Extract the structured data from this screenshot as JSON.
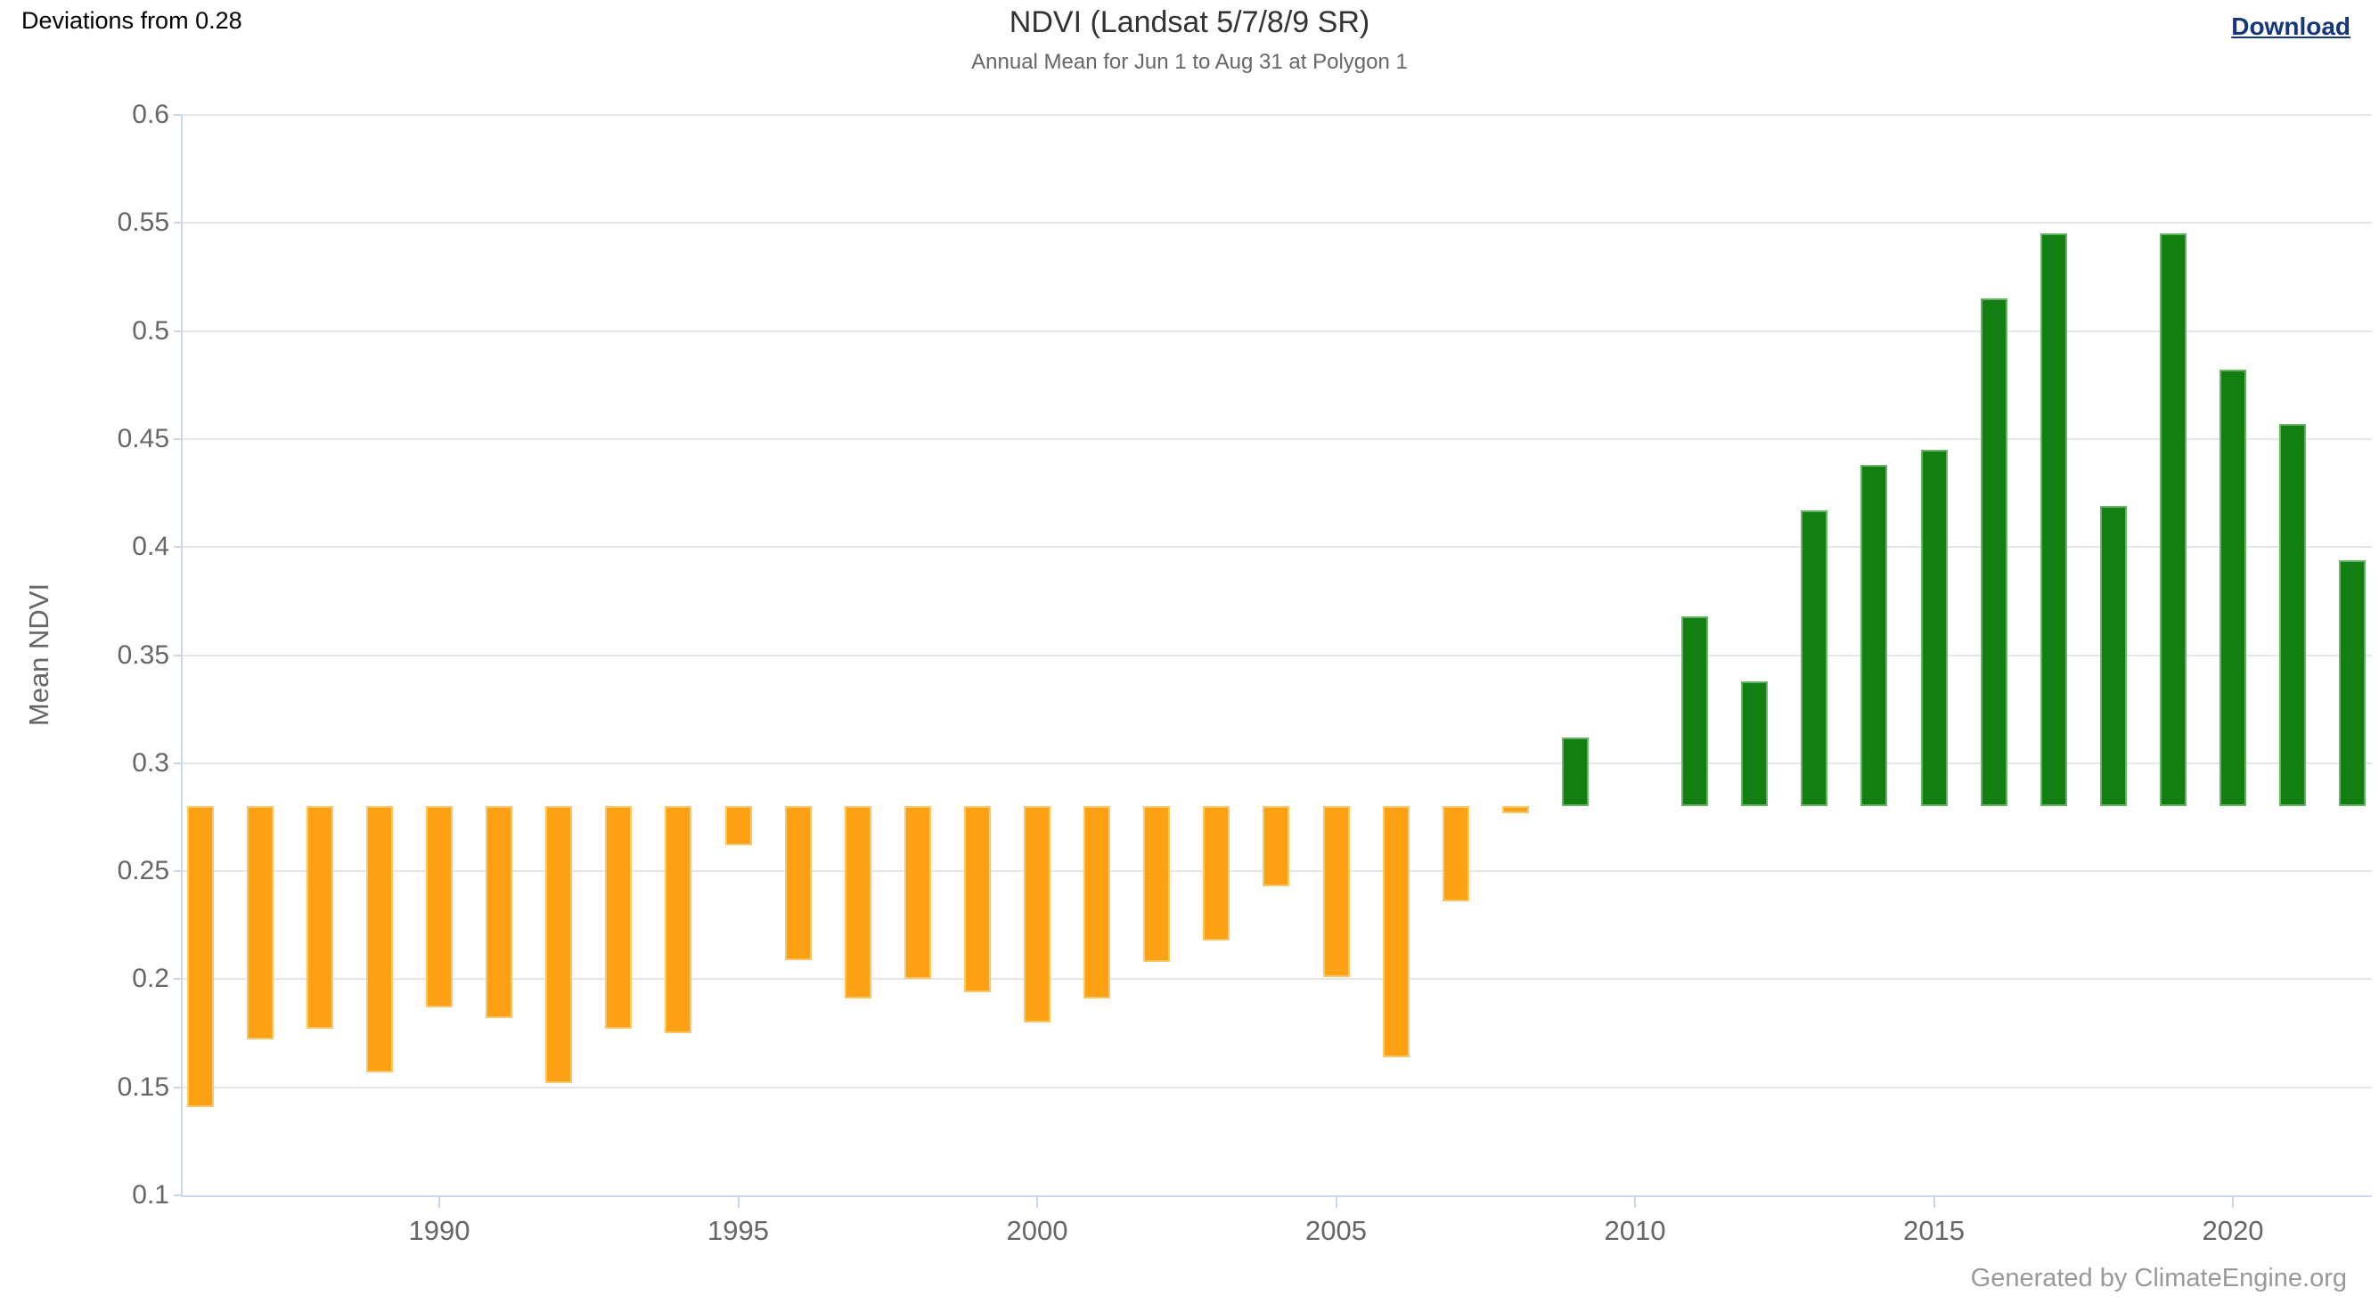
{
  "header": {
    "deviation_label": "Deviations from 0.28",
    "download_label": "Download"
  },
  "watermark": "Generated by ClimateEngine.org",
  "chart_data": {
    "type": "bar",
    "title": "NDVI (Landsat 5/7/8/9 SR)",
    "subtitle": "Annual Mean for Jun 1 to Aug 31 at Polygon 1",
    "ylabel": "Mean NDVI",
    "xlabel": "",
    "baseline": 0.28,
    "ylim": [
      0.1,
      0.6
    ],
    "grid": true,
    "legend_position": "none",
    "y_ticks": [
      "0.6",
      "0.55",
      "0.5",
      "0.45",
      "0.4",
      "0.35",
      "0.3",
      "0.25",
      "0.2",
      "0.15",
      "0.1"
    ],
    "y_tick_values": [
      0.6,
      0.55,
      0.5,
      0.45,
      0.4,
      0.35,
      0.3,
      0.25,
      0.2,
      0.15,
      0.1
    ],
    "x_ticks": [
      1990,
      1995,
      2000,
      2005,
      2010,
      2015,
      2020
    ],
    "missing_years": [
      2010
    ],
    "colors": {
      "below_baseline": "#FBA113",
      "above_baseline": "#117F11"
    },
    "series": [
      {
        "year": 1986,
        "value": 0.141
      },
      {
        "year": 1987,
        "value": 0.172
      },
      {
        "year": 1988,
        "value": 0.177
      },
      {
        "year": 1989,
        "value": 0.157
      },
      {
        "year": 1990,
        "value": 0.187
      },
      {
        "year": 1991,
        "value": 0.182
      },
      {
        "year": 1992,
        "value": 0.152
      },
      {
        "year": 1993,
        "value": 0.177
      },
      {
        "year": 1994,
        "value": 0.175
      },
      {
        "year": 1995,
        "value": 0.262
      },
      {
        "year": 1996,
        "value": 0.209
      },
      {
        "year": 1997,
        "value": 0.191
      },
      {
        "year": 1998,
        "value": 0.2
      },
      {
        "year": 1999,
        "value": 0.194
      },
      {
        "year": 2000,
        "value": 0.18
      },
      {
        "year": 2001,
        "value": 0.191
      },
      {
        "year": 2002,
        "value": 0.208
      },
      {
        "year": 2003,
        "value": 0.218
      },
      {
        "year": 2004,
        "value": 0.243
      },
      {
        "year": 2005,
        "value": 0.201
      },
      {
        "year": 2006,
        "value": 0.164
      },
      {
        "year": 2007,
        "value": 0.236
      },
      {
        "year": 2008,
        "value": 0.277
      },
      {
        "year": 2009,
        "value": 0.312
      },
      {
        "year": 2011,
        "value": 0.368
      },
      {
        "year": 2012,
        "value": 0.338
      },
      {
        "year": 2013,
        "value": 0.417
      },
      {
        "year": 2014,
        "value": 0.438
      },
      {
        "year": 2015,
        "value": 0.445
      },
      {
        "year": 2016,
        "value": 0.515
      },
      {
        "year": 2017,
        "value": 0.545
      },
      {
        "year": 2018,
        "value": 0.419
      },
      {
        "year": 2019,
        "value": 0.545
      },
      {
        "year": 2020,
        "value": 0.482
      },
      {
        "year": 2021,
        "value": 0.457
      },
      {
        "year": 2022,
        "value": 0.394
      }
    ]
  }
}
